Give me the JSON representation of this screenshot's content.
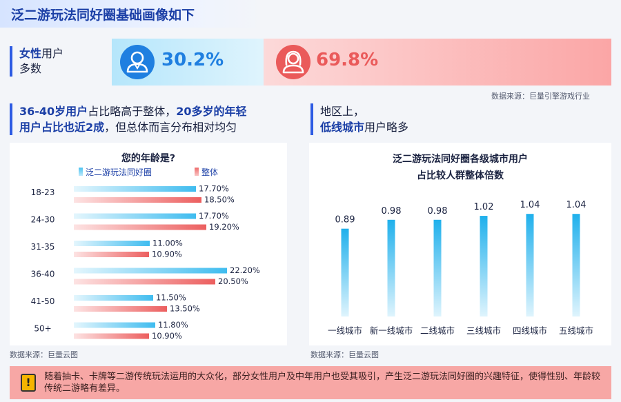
{
  "page_title": "泛二游玩法同好圈基础画像如下",
  "gender": {
    "label_bold": "女性",
    "label_rest": "用户",
    "label_line2": "多数",
    "male_value": "30.2%",
    "female_value": "69.8%",
    "male_icon": "male-user-icon",
    "female_icon": "female-user-icon",
    "source": "数据来源：巨量引擎游戏行业"
  },
  "age_section": {
    "head_l1_b1": "36-40岁用户",
    "head_l1_t1": "占比略高于整体，",
    "head_l1_b2": "20多岁的年轻",
    "head_l2_b1": "用户占比也近2成",
    "head_l2_t1": "，但总体而言分布相对均匀"
  },
  "region_section": {
    "head_l1": "地区上，",
    "head_l2_b": "低线城市",
    "head_l2_t": "用户略多"
  },
  "chart_data": [
    {
      "type": "bar",
      "orientation": "horizontal",
      "title": "您的年龄是?",
      "categories": [
        "18-23",
        "24-30",
        "31-35",
        "36-40",
        "41-50",
        "50+"
      ],
      "series": [
        {
          "name": "泛二游玩法同好圈",
          "values": [
            17.7,
            17.7,
            11.0,
            22.2,
            11.5,
            11.8
          ],
          "labels": [
            "17.70%",
            "17.70%",
            "11.00%",
            "22.20%",
            "11.50%",
            "11.80%"
          ],
          "color": "#4cc3f0"
        },
        {
          "name": "整体",
          "values": [
            18.5,
            19.2,
            10.9,
            20.5,
            13.5,
            10.9
          ],
          "labels": [
            "18.50%",
            "19.20%",
            "10.90%",
            "20.50%",
            "13.50%",
            "10.90%"
          ],
          "color": "#ee6b6b"
        }
      ],
      "xlim": [
        0,
        25
      ],
      "legend": "top",
      "source": "数据来源：巨量云图"
    },
    {
      "type": "bar",
      "orientation": "vertical",
      "title_lines": [
        "泛二游玩法同好圈各级城市用户",
        "占比较人群整体倍数"
      ],
      "categories": [
        "一线城市",
        "新一线城市",
        "二线城市",
        "三线城市",
        "四线城市",
        "五线城市"
      ],
      "values": [
        0.89,
        0.98,
        0.98,
        1.02,
        1.04,
        1.04
      ],
      "labels": [
        "0.89",
        "0.98",
        "0.98",
        "1.02",
        "1.04",
        "1.04"
      ],
      "ylim": [
        0,
        1.3
      ],
      "color": "#2fb8ec",
      "source": "数据来源：巨量云图"
    }
  ],
  "note": {
    "icon": "warning-icon",
    "glyph": "!",
    "text": "随着抽卡、卡牌等二游传统玩法运用的大众化，部分女性用户及中年用户也受其吸引，产生泛二游玩法同好圈的兴趣特征，使得性别、年龄较传统二游略有差异。"
  }
}
